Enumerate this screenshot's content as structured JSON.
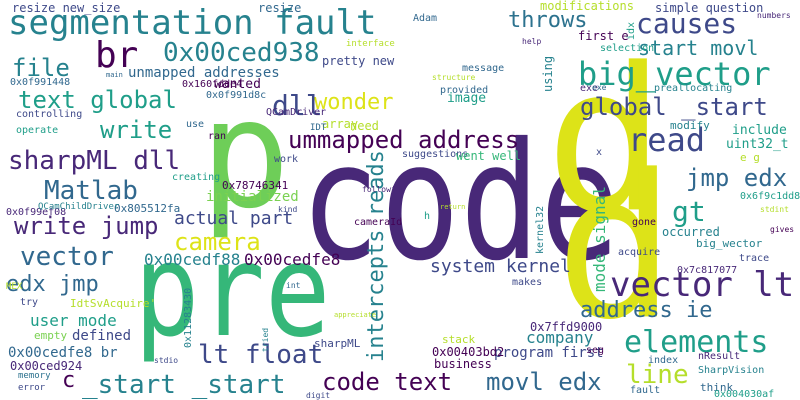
{
  "palette": {
    "yellow": "#dde318",
    "yellow_green": "#b5de2b",
    "light_green": "#7ad151",
    "green": "#35b779",
    "teal": "#22a884",
    "sea": "#1f9e89",
    "cyan": "#26828e",
    "steel": "#31688e",
    "slate": "#3e4989",
    "indigo": "#482878",
    "purple": "#440154"
  },
  "words": [
    {
      "text": "code",
      "color": "#482878"
    },
    {
      "text": "p",
      "color": "#6ece58"
    },
    {
      "text": "pre",
      "color": "#35b779"
    },
    {
      "text": "p",
      "color": "#dde318"
    },
    {
      "text": "p",
      "color": "#dde318"
    },
    {
      "text": "segmentation fault",
      "color": "#26828e"
    },
    {
      "text": "resize new_size",
      "color": "#3e4989"
    },
    {
      "text": "resize",
      "color": "#31688e"
    },
    {
      "text": "modifications",
      "color": "#b5de2b"
    },
    {
      "text": "simple question",
      "color": "#3e4989"
    },
    {
      "text": "numbers",
      "color": "#482878"
    },
    {
      "text": "br",
      "color": "#440154"
    },
    {
      "text": "0x00ced938",
      "color": "#26828e"
    },
    {
      "text": "throws",
      "color": "#2c728e"
    },
    {
      "text": "causes",
      "color": "#3e4989"
    },
    {
      "text": "start movl",
      "color": "#26828e"
    },
    {
      "text": "big_vector",
      "color": "#1f9e89"
    },
    {
      "text": "file",
      "color": "#26828e"
    },
    {
      "text": "unmapped addresses",
      "color": "#31688e"
    },
    {
      "text": "pretty new",
      "color": "#3e4989"
    },
    {
      "text": "wonder",
      "color": "#dde318"
    },
    {
      "text": "text global",
      "color": "#1f9e89"
    },
    {
      "text": "dll",
      "color": "#3e4989"
    },
    {
      "text": "global _start",
      "color": "#3e4989"
    },
    {
      "text": "write",
      "color": "#1f9e89"
    },
    {
      "text": "ummapped address",
      "color": "#440154"
    },
    {
      "text": "read",
      "color": "#3e4989"
    },
    {
      "text": "sharpML dll",
      "color": "#482878"
    },
    {
      "text": "gt",
      "color": "#1f9e89"
    },
    {
      "text": "Matlab",
      "color": "#31688e"
    },
    {
      "text": "jmp edx",
      "color": "#31688e"
    },
    {
      "text": "write jump",
      "color": "#482878"
    },
    {
      "text": "actual part",
      "color": "#3e4989"
    },
    {
      "text": "camera",
      "color": "#dde318"
    },
    {
      "text": "vector",
      "color": "#31688e"
    },
    {
      "text": "edx jmp",
      "color": "#31688e"
    },
    {
      "text": "0x00cedf88",
      "color": "#26828e"
    },
    {
      "text": "0x00cedfe8",
      "color": "#440154"
    },
    {
      "text": "vector lt",
      "color": "#482878"
    },
    {
      "text": "address ie",
      "color": "#31688e"
    },
    {
      "text": "system kernel",
      "color": "#3e4989"
    },
    {
      "text": "elements",
      "color": "#1f9e89"
    },
    {
      "text": "intercepts reads",
      "color": "#26828e"
    },
    {
      "text": "lt float",
      "color": "#3e4989"
    },
    {
      "text": "user mode",
      "color": "#1f9e89"
    },
    {
      "text": "code text",
      "color": "#440154"
    },
    {
      "text": "movl edx",
      "color": "#31688e"
    },
    {
      "text": "line",
      "color": "#b5de2b"
    },
    {
      "text": "_start _start",
      "color": "#26828e"
    },
    {
      "text": "c",
      "color": "#440154"
    },
    {
      "text": "0x00cedfe8 br",
      "color": "#31688e"
    },
    {
      "text": "0x00ced924",
      "color": "#482878"
    },
    {
      "text": "mode signal",
      "color": "#35b779"
    },
    {
      "text": "program first",
      "color": "#3e4989"
    },
    {
      "text": "company",
      "color": "#26828e"
    },
    {
      "text": "0x00403bd2",
      "color": "#440154"
    },
    {
      "text": "0x7ffd9000",
      "color": "#482878"
    },
    {
      "text": "stack",
      "color": "#b5de2b"
    },
    {
      "text": "business",
      "color": "#440154"
    },
    {
      "text": "defined",
      "color": "#3e4989"
    },
    {
      "text": "empty",
      "color": "#7ad151"
    },
    {
      "text": "memory",
      "color": "#2c728e"
    },
    {
      "text": "error",
      "color": "#3e4989"
    },
    {
      "text": "0x0f99ef08",
      "color": "#482878"
    },
    {
      "text": "0x805512fa",
      "color": "#31688e"
    },
    {
      "text": "QCamChildDriver",
      "color": "#26828e"
    },
    {
      "text": "0x78746341",
      "color": "#440154"
    },
    {
      "text": "initialized",
      "color": "#7ad151"
    },
    {
      "text": "wanted",
      "color": "#440154"
    },
    {
      "text": "0x160fdde4",
      "color": "#440154"
    },
    {
      "text": "0x0f991448",
      "color": "#31688e"
    },
    {
      "text": "0x0f991d8c",
      "color": "#31688e"
    },
    {
      "text": "image",
      "color": "#1f9e89"
    },
    {
      "text": "Adam",
      "color": "#31688e"
    },
    {
      "text": "message",
      "color": "#31688e"
    },
    {
      "text": "provided",
      "color": "#31688e"
    },
    {
      "text": "using",
      "color": "#26828e"
    },
    {
      "text": "structure",
      "color": "#b5de2b"
    },
    {
      "text": "selection",
      "color": "#1f9e89"
    },
    {
      "text": "first e",
      "color": "#440154"
    },
    {
      "text": "help",
      "color": "#482878"
    },
    {
      "text": "idx",
      "color": "#1f9e89"
    },
    {
      "text": "exe",
      "color": "#482878"
    },
    {
      "text": "preallocating",
      "color": "#26828e"
    },
    {
      "text": "include",
      "color": "#1f9e89"
    },
    {
      "text": "modify",
      "color": "#26828e"
    },
    {
      "text": "uint32_t",
      "color": "#1f9e89"
    },
    {
      "text": "e g",
      "color": "#b5de2b"
    },
    {
      "text": "x",
      "color": "#3e4989"
    },
    {
      "text": "0x6f9c1dd8",
      "color": "#1f9e89"
    },
    {
      "text": "stdint",
      "color": "#b5de2b"
    },
    {
      "text": "big_wector",
      "color": "#26828e"
    },
    {
      "text": "gives",
      "color": "#440154"
    },
    {
      "text": "occurred",
      "color": "#26828e"
    },
    {
      "text": "trace",
      "color": "#3e4989"
    },
    {
      "text": "0x7c817077",
      "color": "#482878"
    },
    {
      "text": "acquire",
      "color": "#3e4989"
    },
    {
      "text": "gone",
      "color": "#440154"
    },
    {
      "text": "exe",
      "color": "#31688e"
    },
    {
      "text": "suggestions",
      "color": "#3e4989"
    },
    {
      "text": "went well",
      "color": "#35b779"
    },
    {
      "text": "interface",
      "color": "#b5de2b"
    },
    {
      "text": "main",
      "color": "#31688e"
    },
    {
      "text": "controlling",
      "color": "#3e4989"
    },
    {
      "text": "operate",
      "color": "#1f9e89"
    },
    {
      "text": "use",
      "color": "#31688e"
    },
    {
      "text": "ran",
      "color": "#440154"
    },
    {
      "text": "array",
      "color": "#b5de2b"
    },
    {
      "text": "need",
      "color": "#b5de2b"
    },
    {
      "text": "IDT",
      "color": "#31688e"
    },
    {
      "text": "QCamDriver",
      "color": "#482878"
    },
    {
      "text": "work",
      "color": "#3e4989"
    },
    {
      "text": "creating",
      "color": "#1f9e89"
    },
    {
      "text": "kind",
      "color": "#3e4989"
    },
    {
      "text": "cameraId",
      "color": "#440154"
    },
    {
      "text": "following",
      "color": "#482878"
    },
    {
      "text": "return",
      "color": "#b5de2b"
    },
    {
      "text": "h",
      "color": "#1f9e89"
    },
    {
      "text": "kernel32",
      "color": "#26828e"
    },
    {
      "text": "makes",
      "color": "#3e4989"
    },
    {
      "text": "seg",
      "color": "#440154"
    },
    {
      "text": "nResult",
      "color": "#482878"
    },
    {
      "text": "index",
      "color": "#31688e"
    },
    {
      "text": "SharpVision",
      "color": "#26828e"
    },
    {
      "text": "think",
      "color": "#31688e"
    },
    {
      "text": "fault",
      "color": "#31688e"
    },
    {
      "text": "0x004030af",
      "color": "#1f9e89"
    },
    {
      "text": "0x11283430",
      "color": "#26828e"
    },
    {
      "text": "sharpML",
      "color": "#3e4989"
    },
    {
      "text": "tried",
      "color": "#26828e"
    },
    {
      "text": "stdio",
      "color": "#3e4989"
    },
    {
      "text": "int",
      "color": "#31688e"
    },
    {
      "text": "appreciate",
      "color": "#b5de2b"
    },
    {
      "text": "digit",
      "color": "#3e4989"
    },
    {
      "text": "IdtSvAcquire'",
      "color": "#b5de2b"
    },
    {
      "text": "try",
      "color": "#3e4989"
    },
    {
      "text": "MEX",
      "color": "#b5de2b"
    }
  ]
}
